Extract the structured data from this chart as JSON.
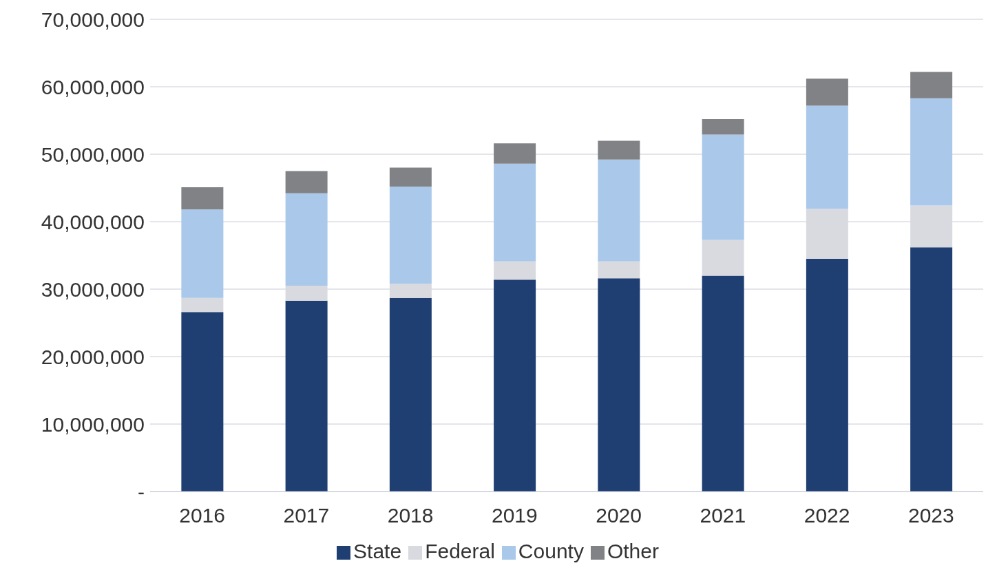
{
  "chart_data": {
    "type": "bar",
    "stacked": true,
    "categories": [
      "2016",
      "2017",
      "2018",
      "2019",
      "2020",
      "2021",
      "2022",
      "2023"
    ],
    "series": [
      {
        "name": "State",
        "color": "#1f3f73",
        "values": [
          26600000,
          28300000,
          28700000,
          31400000,
          31600000,
          32000000,
          34500000,
          36200000
        ]
      },
      {
        "name": "Federal",
        "color": "#d9dadf",
        "values": [
          2100000,
          2200000,
          2100000,
          2700000,
          2500000,
          5300000,
          7400000,
          6200000
        ]
      },
      {
        "name": "County",
        "color": "#a9c8ea",
        "values": [
          13100000,
          13700000,
          14400000,
          14500000,
          15100000,
          15600000,
          15300000,
          15900000
        ]
      },
      {
        "name": "Other",
        "color": "#808285",
        "values": [
          3300000,
          3300000,
          2800000,
          3000000,
          2800000,
          2300000,
          4000000,
          3900000
        ]
      }
    ],
    "ylim": [
      0,
      70000000
    ],
    "yticks": [
      {
        "value": 0,
        "label": "-"
      },
      {
        "value": 10000000,
        "label": "10,000,000"
      },
      {
        "value": 20000000,
        "label": "20,000,000"
      },
      {
        "value": 30000000,
        "label": "30,000,000"
      },
      {
        "value": 40000000,
        "label": "40,000,000"
      },
      {
        "value": 50000000,
        "label": "50,000,000"
      },
      {
        "value": 60000000,
        "label": "60,000,000"
      },
      {
        "value": 70000000,
        "label": "70,000,000"
      }
    ],
    "grid": "y",
    "legend": "bottom"
  }
}
